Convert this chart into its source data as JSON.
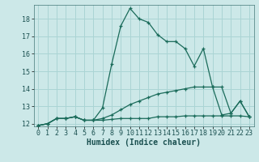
{
  "xlabel": "Humidex (Indice chaleur)",
  "background_color": "#cce8e8",
  "line_color": "#1a6b5a",
  "grid_color": "#aad4d4",
  "x_values": [
    0,
    1,
    2,
    3,
    4,
    5,
    6,
    7,
    8,
    9,
    10,
    11,
    12,
    13,
    14,
    15,
    16,
    17,
    18,
    19,
    20,
    21,
    22,
    23
  ],
  "line1_y": [
    11.9,
    12.0,
    12.3,
    12.3,
    12.4,
    12.2,
    12.2,
    12.9,
    15.4,
    17.6,
    18.6,
    18.0,
    17.8,
    17.1,
    16.7,
    16.7,
    16.3,
    15.3,
    16.3,
    14.1,
    12.5,
    12.6,
    13.3,
    12.4
  ],
  "line2_y": [
    11.9,
    12.0,
    12.3,
    12.3,
    12.4,
    12.2,
    12.2,
    12.2,
    12.25,
    12.3,
    12.3,
    12.3,
    12.3,
    12.4,
    12.4,
    12.4,
    12.45,
    12.45,
    12.45,
    12.45,
    12.45,
    12.45,
    12.45,
    12.4
  ],
  "line3_y": [
    11.9,
    12.0,
    12.3,
    12.3,
    12.4,
    12.2,
    12.2,
    12.3,
    12.5,
    12.8,
    13.1,
    13.3,
    13.5,
    13.7,
    13.8,
    13.9,
    14.0,
    14.1,
    14.1,
    14.1,
    14.1,
    12.6,
    13.3,
    12.4
  ],
  "ylim_min": 11.85,
  "ylim_max": 18.8,
  "xlim_min": -0.5,
  "xlim_max": 23.5,
  "yticks": [
    12,
    13,
    14,
    15,
    16,
    17,
    18
  ],
  "xticks": [
    0,
    1,
    2,
    3,
    4,
    5,
    6,
    7,
    8,
    9,
    10,
    11,
    12,
    13,
    14,
    15,
    16,
    17,
    18,
    19,
    20,
    21,
    22,
    23
  ],
  "tick_fontsize": 6.0,
  "xlabel_fontsize": 7.0
}
